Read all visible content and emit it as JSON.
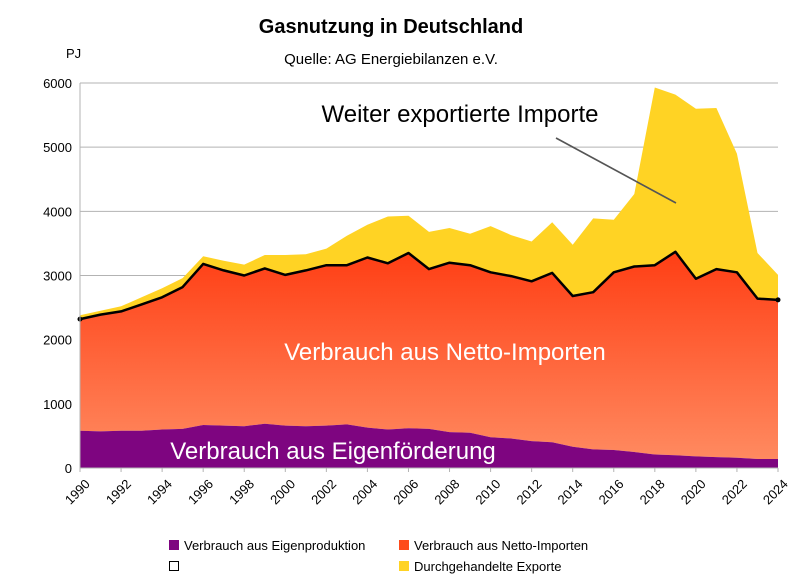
{
  "chart_data": {
    "type": "area",
    "title": "Gasnutzung in Deutschland",
    "subtitle": "Quelle: AG Energiebilanzen e.V.",
    "ylabel": "PJ",
    "xlabel": "",
    "ylim": [
      0,
      6000
    ],
    "grid": true,
    "yticks": [
      0,
      1000,
      2000,
      3000,
      4000,
      5000,
      6000
    ],
    "xticks": [
      1990,
      1992,
      1994,
      1996,
      1998,
      2000,
      2002,
      2004,
      2006,
      2008,
      2010,
      2012,
      2014,
      2016,
      2018,
      2020,
      2022,
      2024
    ],
    "years": [
      1990,
      1991,
      1992,
      1993,
      1994,
      1995,
      1996,
      1997,
      1998,
      1999,
      2000,
      2001,
      2002,
      2003,
      2004,
      2005,
      2006,
      2007,
      2008,
      2009,
      2010,
      2011,
      2012,
      2013,
      2014,
      2015,
      2016,
      2017,
      2018,
      2019,
      2020,
      2021,
      2022,
      2023,
      2024
    ],
    "series": [
      {
        "name": "Verbrauch aus Eigenproduktion",
        "color": "#7e0580",
        "values": [
          580,
          570,
          580,
          580,
          600,
          610,
          670,
          660,
          650,
          690,
          660,
          650,
          660,
          680,
          630,
          600,
          620,
          610,
          560,
          550,
          480,
          460,
          420,
          400,
          330,
          290,
          280,
          250,
          210,
          200,
          180,
          170,
          160,
          140,
          140
        ]
      },
      {
        "name": "Verbrauch aus Netto-Importen",
        "color": "#fe4b1b",
        "values": [
          1740,
          1820,
          1860,
          1970,
          2060,
          2210,
          2510,
          2420,
          2350,
          2420,
          2350,
          2430,
          2500,
          2480,
          2650,
          2590,
          2730,
          2490,
          2640,
          2610,
          2570,
          2530,
          2490,
          2640,
          2350,
          2450,
          2770,
          2890,
          2950,
          3170,
          2770,
          2930,
          2890,
          2500,
          2480
        ]
      },
      {
        "name": "",
        "color": "#000000",
        "values": [
          2320,
          2390,
          2440,
          2550,
          2660,
          2820,
          3180,
          3080,
          3000,
          3110,
          3010,
          3080,
          3160,
          3160,
          3280,
          3190,
          3350,
          3100,
          3200,
          3160,
          3050,
          2990,
          2910,
          3040,
          2680,
          2740,
          3050,
          3140,
          3160,
          3370,
          2950,
          3100,
          3050,
          2640,
          2620
        ]
      },
      {
        "name": "Durchgehandelte Exporte",
        "color": "#ffd324",
        "values": [
          60,
          60,
          80,
          110,
          140,
          140,
          120,
          150,
          170,
          210,
          310,
          250,
          260,
          460,
          510,
          730,
          580,
          580,
          540,
          490,
          720,
          640,
          620,
          790,
          800,
          1150,
          820,
          1130,
          2770,
          2450,
          2650,
          2510,
          1850,
          710,
          390
        ]
      }
    ],
    "annotations": [
      "Weiter exportierte Importe",
      "Verbrauch aus Netto-Importen",
      "Verbrauch aus Eigenförderung"
    ],
    "legend": {
      "placement": "bottom",
      "items": [
        "Verbrauch aus Eigenproduktion",
        "Verbrauch aus Netto-Importen",
        "",
        "Durchgehandelte Exporte"
      ]
    }
  }
}
